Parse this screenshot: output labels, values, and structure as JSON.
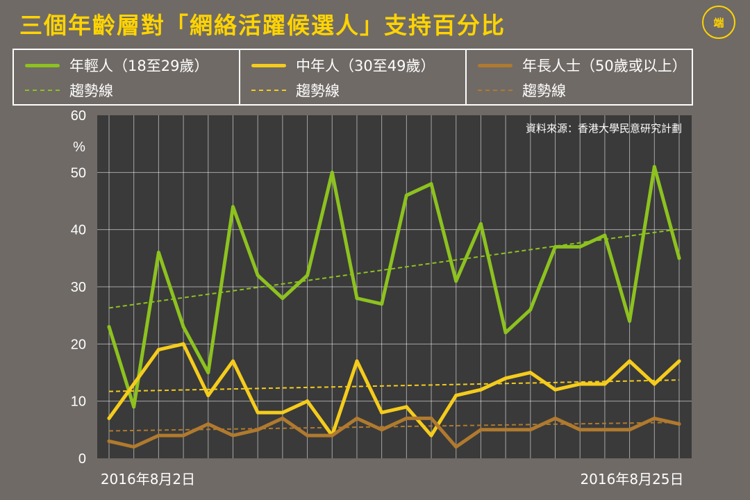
{
  "header": {
    "title": "三個年齡層對「網絡活躍候選人」支持百分比",
    "logo_text": "端"
  },
  "legend": [
    {
      "label": "年輕人（18至29歲）",
      "trend_label": "趨勢線",
      "color": "#8dc21f"
    },
    {
      "label": "中年人（30至49歲）",
      "trend_label": "趨勢線",
      "color": "#f5cc1c"
    },
    {
      "label": "年長人士（50歲或以上）",
      "trend_label": "趨勢線",
      "color": "#b07a2e"
    }
  ],
  "source": "資料來源：香港大學民意研究計劃",
  "chart_data": {
    "type": "line",
    "y_unit": "%",
    "ylim": [
      0,
      60
    ],
    "y_ticks": [
      0,
      10,
      20,
      30,
      40,
      50,
      60
    ],
    "x_start_label": "2016年8月2日",
    "x_end_label": "2016年8月25日",
    "n_points": 24,
    "grid": true,
    "legend_position": "top",
    "series": [
      {
        "name": "年輕人（18至29歲）",
        "color": "#8dc21f",
        "values": [
          23,
          9,
          36,
          23,
          15,
          44,
          32,
          28,
          32,
          50,
          28,
          27,
          46,
          48,
          31,
          41,
          22,
          26,
          37,
          37,
          39,
          24,
          51,
          35
        ],
        "trend": [
          26.3,
          40.1
        ]
      },
      {
        "name": "中年人（30至49歲）",
        "color": "#f5cc1c",
        "values": [
          7,
          13,
          19,
          20,
          11,
          17,
          8,
          8,
          10,
          4,
          17,
          8,
          9,
          4,
          11,
          12,
          14,
          15,
          12,
          13,
          13,
          17,
          13,
          17
        ],
        "trend": [
          11.7,
          13.7
        ]
      },
      {
        "name": "年長人士（50歲或以上）",
        "color": "#b07a2e",
        "values": [
          3,
          2,
          4,
          4,
          6,
          4,
          5,
          7,
          4,
          4,
          7,
          5,
          7,
          7,
          2,
          5,
          5,
          5,
          7,
          5,
          5,
          5,
          7,
          6
        ],
        "trend": [
          4.8,
          6.3
        ]
      }
    ]
  }
}
